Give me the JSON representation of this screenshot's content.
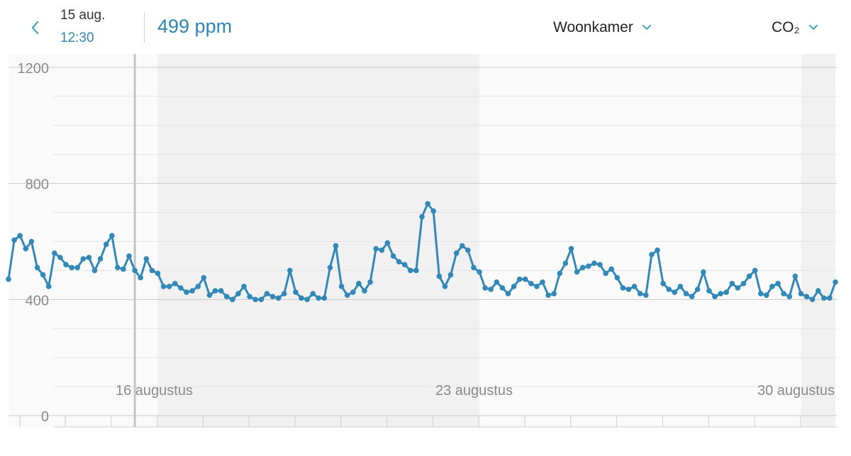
{
  "header": {
    "date": "15 aug.",
    "time": "12:30",
    "reading": "499 ppm",
    "room": "Woonkamer",
    "metric": "CO₂"
  },
  "colors": {
    "accent": "#2f86b3",
    "line": "#3288b6",
    "chevron": "#4aa8b8",
    "band": "#f1f1f1"
  },
  "chart_data": {
    "type": "line",
    "ylim": [
      0,
      1200
    ],
    "yticks": [
      "1200",
      "800",
      "400",
      "0"
    ],
    "xlabels": [
      "16 augustus",
      "23 augustus",
      "30 augustus"
    ],
    "y_unit": "ppm",
    "selected_index": 22,
    "grid": true,
    "series": [
      {
        "values": [
          470,
          605,
          620,
          575,
          600,
          510,
          485,
          445,
          560,
          545,
          520,
          510,
          510,
          540,
          545,
          500,
          540,
          590,
          620,
          510,
          505,
          550,
          500,
          475,
          540,
          500,
          490,
          445,
          445,
          455,
          440,
          425,
          430,
          445,
          475,
          415,
          430,
          430,
          410,
          400,
          420,
          445,
          410,
          400,
          400,
          420,
          410,
          405,
          420,
          500,
          425,
          405,
          400,
          420,
          405,
          405,
          510,
          585,
          445,
          415,
          425,
          455,
          430,
          460,
          575,
          570,
          595,
          550,
          530,
          520,
          500,
          500,
          685,
          730,
          705,
          480,
          445,
          485,
          560,
          585,
          570,
          510,
          495,
          440,
          435,
          460,
          440,
          420,
          445,
          470,
          470,
          455,
          445,
          460,
          415,
          420,
          490,
          525,
          575,
          495,
          510,
          515,
          525,
          520,
          490,
          505,
          475,
          440,
          435,
          445,
          420,
          415,
          555,
          570,
          455,
          435,
          425,
          445,
          420,
          410,
          435,
          495,
          430,
          410,
          420,
          425,
          455,
          440,
          455,
          480,
          500,
          420,
          415,
          445,
          455,
          420,
          410,
          480,
          420,
          410,
          400,
          430,
          405,
          405,
          460
        ]
      }
    ]
  }
}
